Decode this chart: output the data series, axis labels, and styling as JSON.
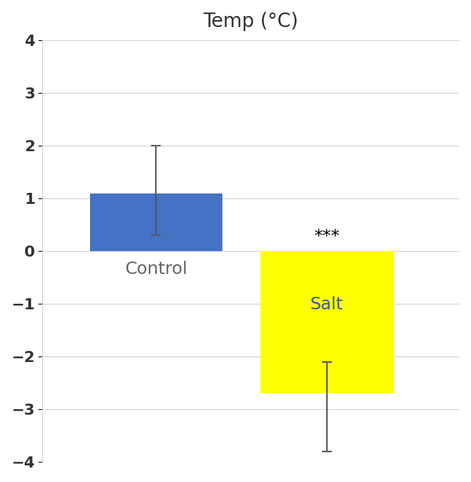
{
  "categories": [
    "Control",
    "Salt"
  ],
  "values": [
    1.1,
    -2.7
  ],
  "error_up": [
    0.9,
    1.1
  ],
  "error_down": [
    0.8,
    0.6
  ],
  "bar_colors": [
    "#4472C4",
    "#FFFF00"
  ],
  "bar_width": 0.35,
  "bar_positions": [
    0.3,
    0.75
  ],
  "xlim": [
    0,
    1.1
  ],
  "title": "Temp (°C)",
  "title_fontsize": 20,
  "ylim": [
    -4,
    4
  ],
  "yticks": [
    -4,
    -3,
    -2,
    -1,
    0,
    1,
    2,
    3,
    4
  ],
  "tick_fontsize": 16,
  "annotation_text": "***",
  "annotation_fontsize": 18,
  "background_color": "#ffffff",
  "error_color": "#555555",
  "error_capsize": 5,
  "error_linewidth": 1.5,
  "bar_edgecolor": "none",
  "salt_label_color": "#3a5ba0",
  "salt_label_fontsize": 18,
  "control_label_color": "#666666",
  "control_label_fontsize": 18,
  "grid_color": "#d0d0d0",
  "grid_linewidth": 0.8
}
